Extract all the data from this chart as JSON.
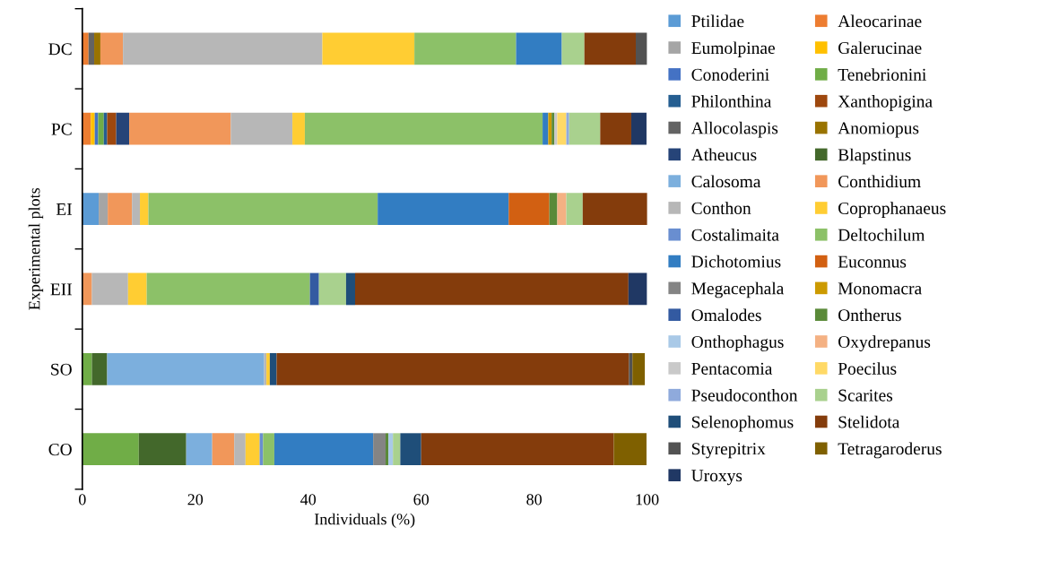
{
  "chart_data": {
    "type": "bar",
    "orientation": "horizontal",
    "stacked": true,
    "xlabel": "Individuals (%)",
    "ylabel": "Experimental plots",
    "categories": [
      "DC",
      "PC",
      "EI",
      "EII",
      "SO",
      "CO"
    ],
    "xlim": [
      0,
      100
    ],
    "xticks": [
      0,
      20,
      40,
      60,
      80,
      100
    ],
    "legend": "right",
    "grid": false,
    "series": [
      {
        "name": "Ptilidae",
        "color": "#5b9bd5",
        "values": [
          null,
          null,
          2.9,
          null,
          null,
          null
        ]
      },
      {
        "name": "Aleocarinae",
        "color": "#ed7d31",
        "values": [
          1.1,
          1.5,
          null,
          null,
          null,
          null
        ]
      },
      {
        "name": "Eumolpinae",
        "color": "#a5a5a5",
        "values": [
          null,
          null,
          1.6,
          null,
          null,
          null
        ]
      },
      {
        "name": "Galerucinae",
        "color": "#ffc000",
        "values": [
          null,
          0.7,
          null,
          null,
          null,
          null
        ]
      },
      {
        "name": "Conoderini",
        "color": "#4472c4",
        "values": [
          null,
          0.6,
          null,
          null,
          null,
          null
        ]
      },
      {
        "name": "Tenebrionini",
        "color": "#70ad47",
        "values": [
          null,
          1.0,
          null,
          null,
          1.7,
          10.0
        ]
      },
      {
        "name": "Philonthina",
        "color": "#255e91",
        "values": [
          null,
          0.6,
          null,
          null,
          null,
          null
        ]
      },
      {
        "name": "Xanthopigina",
        "color": "#9e480e",
        "values": [
          null,
          1.6,
          null,
          null,
          null,
          null
        ]
      },
      {
        "name": "Allocolaspis",
        "color": "#636363",
        "values": [
          1.0,
          null,
          null,
          null,
          null,
          null
        ]
      },
      {
        "name": "Anomiopus",
        "color": "#997300",
        "values": [
          1.1,
          null,
          null,
          null,
          null,
          null
        ]
      },
      {
        "name": "Atheucus",
        "color": "#264478",
        "values": [
          null,
          2.3,
          null,
          null,
          null,
          null
        ]
      },
      {
        "name": "Blapstinus",
        "color": "#43682b",
        "values": [
          null,
          null,
          null,
          null,
          2.7,
          8.4
        ]
      },
      {
        "name": "Calosoma",
        "color": "#7cafdd",
        "values": [
          null,
          null,
          null,
          null,
          27.8,
          4.6
        ]
      },
      {
        "name": "Conthidium",
        "color": "#f1975a",
        "values": [
          4.0,
          18.0,
          4.3,
          1.7,
          null,
          3.9
        ]
      },
      {
        "name": "Conthon",
        "color": "#b7b7b7",
        "values": [
          35.3,
          10.9,
          1.4,
          6.4,
          0.4,
          2.0
        ]
      },
      {
        "name": "Coprophanaeus",
        "color": "#ffcd33",
        "values": [
          16.3,
          2.2,
          1.5,
          3.3,
          0.6,
          2.5
        ]
      },
      {
        "name": "Costalimaita",
        "color": "#698ed0",
        "values": [
          null,
          null,
          null,
          null,
          null,
          0.6
        ]
      },
      {
        "name": "Deltochilum",
        "color": "#8cc168",
        "values": [
          18.0,
          42.1,
          40.6,
          28.9,
          null,
          2.0
        ]
      },
      {
        "name": "Dichotomius",
        "color": "#327dc2",
        "values": [
          8.1,
          1.0,
          23.2,
          null,
          null,
          17.5
        ]
      },
      {
        "name": "Euconnus",
        "color": "#d26012",
        "values": [
          null,
          null,
          7.2,
          null,
          null,
          null
        ]
      },
      {
        "name": "Megacephala",
        "color": "#848484",
        "values": [
          null,
          null,
          null,
          null,
          null,
          2.2
        ]
      },
      {
        "name": "Monomacra",
        "color": "#cc9a00",
        "values": [
          null,
          0.6,
          null,
          null,
          null,
          null
        ]
      },
      {
        "name": "Omalodes",
        "color": "#335aa1",
        "values": [
          null,
          null,
          null,
          1.6,
          null,
          null
        ]
      },
      {
        "name": "Ontherus",
        "color": "#5a8a39",
        "values": [
          null,
          0.5,
          1.4,
          null,
          null,
          0.5
        ]
      },
      {
        "name": "Onthophagus",
        "color": "#a9c9e7",
        "values": [
          null,
          null,
          null,
          null,
          null,
          0.8
        ]
      },
      {
        "name": "Oxydrepanus",
        "color": "#f4b183",
        "values": [
          null,
          null,
          1.6,
          null,
          null,
          null
        ]
      },
      {
        "name": "Pentacomia",
        "color": "#c9c9c9",
        "values": [
          null,
          0.5,
          null,
          null,
          null,
          null
        ]
      },
      {
        "name": "Poecilus",
        "color": "#ffd966",
        "values": [
          null,
          1.6,
          null,
          null,
          null,
          null
        ]
      },
      {
        "name": "Pseudoconthon",
        "color": "#8faadc",
        "values": [
          null,
          0.5,
          null,
          null,
          null,
          null
        ]
      },
      {
        "name": "Scarites",
        "color": "#a9d18e",
        "values": [
          4.0,
          5.5,
          2.9,
          4.8,
          null,
          1.3
        ]
      },
      {
        "name": "Selenophomus",
        "color": "#1f4e79",
        "values": [
          null,
          null,
          null,
          1.6,
          1.2,
          3.7
        ]
      },
      {
        "name": "Stelidota",
        "color": "#843c0c",
        "values": [
          9.1,
          5.5,
          11.5,
          48.4,
          62.4,
          34.1
        ]
      },
      {
        "name": "Styrepitrix",
        "color": "#525252",
        "values": [
          2.0,
          null,
          null,
          null,
          0.6,
          null
        ]
      },
      {
        "name": "Tetragaroderus",
        "color": "#7f6000",
        "values": [
          null,
          null,
          null,
          null,
          2.2,
          5.8
        ]
      },
      {
        "name": "Uroxys",
        "color": "#203864",
        "values": [
          null,
          2.7,
          null,
          3.3,
          null,
          null
        ]
      }
    ]
  }
}
